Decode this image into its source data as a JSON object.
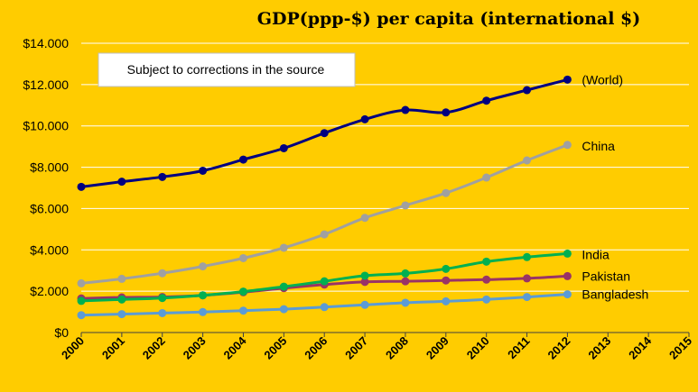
{
  "chart_data": {
    "type": "line",
    "title": "GDP(ppp-$) per capita (international $)",
    "annotation": "Subject to corrections  in the source",
    "x_ticks": [
      "2000",
      "2001",
      "2002",
      "2003",
      "2004",
      "2005",
      "2006",
      "2007",
      "2008",
      "2009",
      "2010",
      "2011",
      "2012",
      "2013",
      "2014",
      "2015"
    ],
    "y_ticks": [
      "$0",
      "$2.000",
      "$4.000",
      "$6.000",
      "$8.000",
      "$10.000",
      "$12.000",
      "$14.000"
    ],
    "xlim": [
      2000,
      2015
    ],
    "ylim": [
      0,
      14000
    ],
    "grid": "horizontal",
    "x": [
      2000,
      2001,
      2002,
      2003,
      2004,
      2005,
      2006,
      2007,
      2008,
      2009,
      2010,
      2011,
      2012
    ],
    "series": [
      {
        "name": "(World)",
        "color": "#000080",
        "values": [
          7050,
          7300,
          7530,
          7830,
          8370,
          8920,
          9650,
          10320,
          10770,
          10650,
          11220,
          11730,
          12240
        ]
      },
      {
        "name": "China",
        "color": "#A0A0A0",
        "values": [
          2380,
          2600,
          2870,
          3200,
          3600,
          4100,
          4750,
          5550,
          6150,
          6750,
          7500,
          8330,
          9080
        ]
      },
      {
        "name": "India",
        "color": "#00B050",
        "values": [
          1530,
          1600,
          1670,
          1800,
          1980,
          2220,
          2480,
          2750,
          2860,
          3080,
          3430,
          3650,
          3820
        ]
      },
      {
        "name": "Pakistan",
        "color": "#993366",
        "values": [
          1650,
          1700,
          1720,
          1800,
          1950,
          2150,
          2320,
          2450,
          2480,
          2520,
          2560,
          2620,
          2730
        ]
      },
      {
        "name": "Bangladesh",
        "color": "#5B9BD5",
        "values": [
          840,
          890,
          940,
          990,
          1060,
          1130,
          1230,
          1340,
          1440,
          1510,
          1600,
          1720,
          1850
        ]
      }
    ]
  }
}
